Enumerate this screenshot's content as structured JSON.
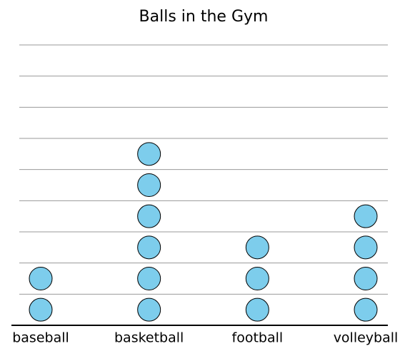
{
  "chart_data": {
    "type": "pictograph",
    "title": "Balls in the Gym",
    "categories": [
      "baseball",
      "basketball",
      "football",
      "volleyball"
    ],
    "values": [
      2,
      6,
      3,
      4
    ],
    "color": "#7dcdec",
    "ylim": [
      0,
      9
    ],
    "yticks": [
      0,
      1,
      2,
      3,
      4,
      5,
      6,
      7,
      8,
      9
    ],
    "grid": true
  }
}
